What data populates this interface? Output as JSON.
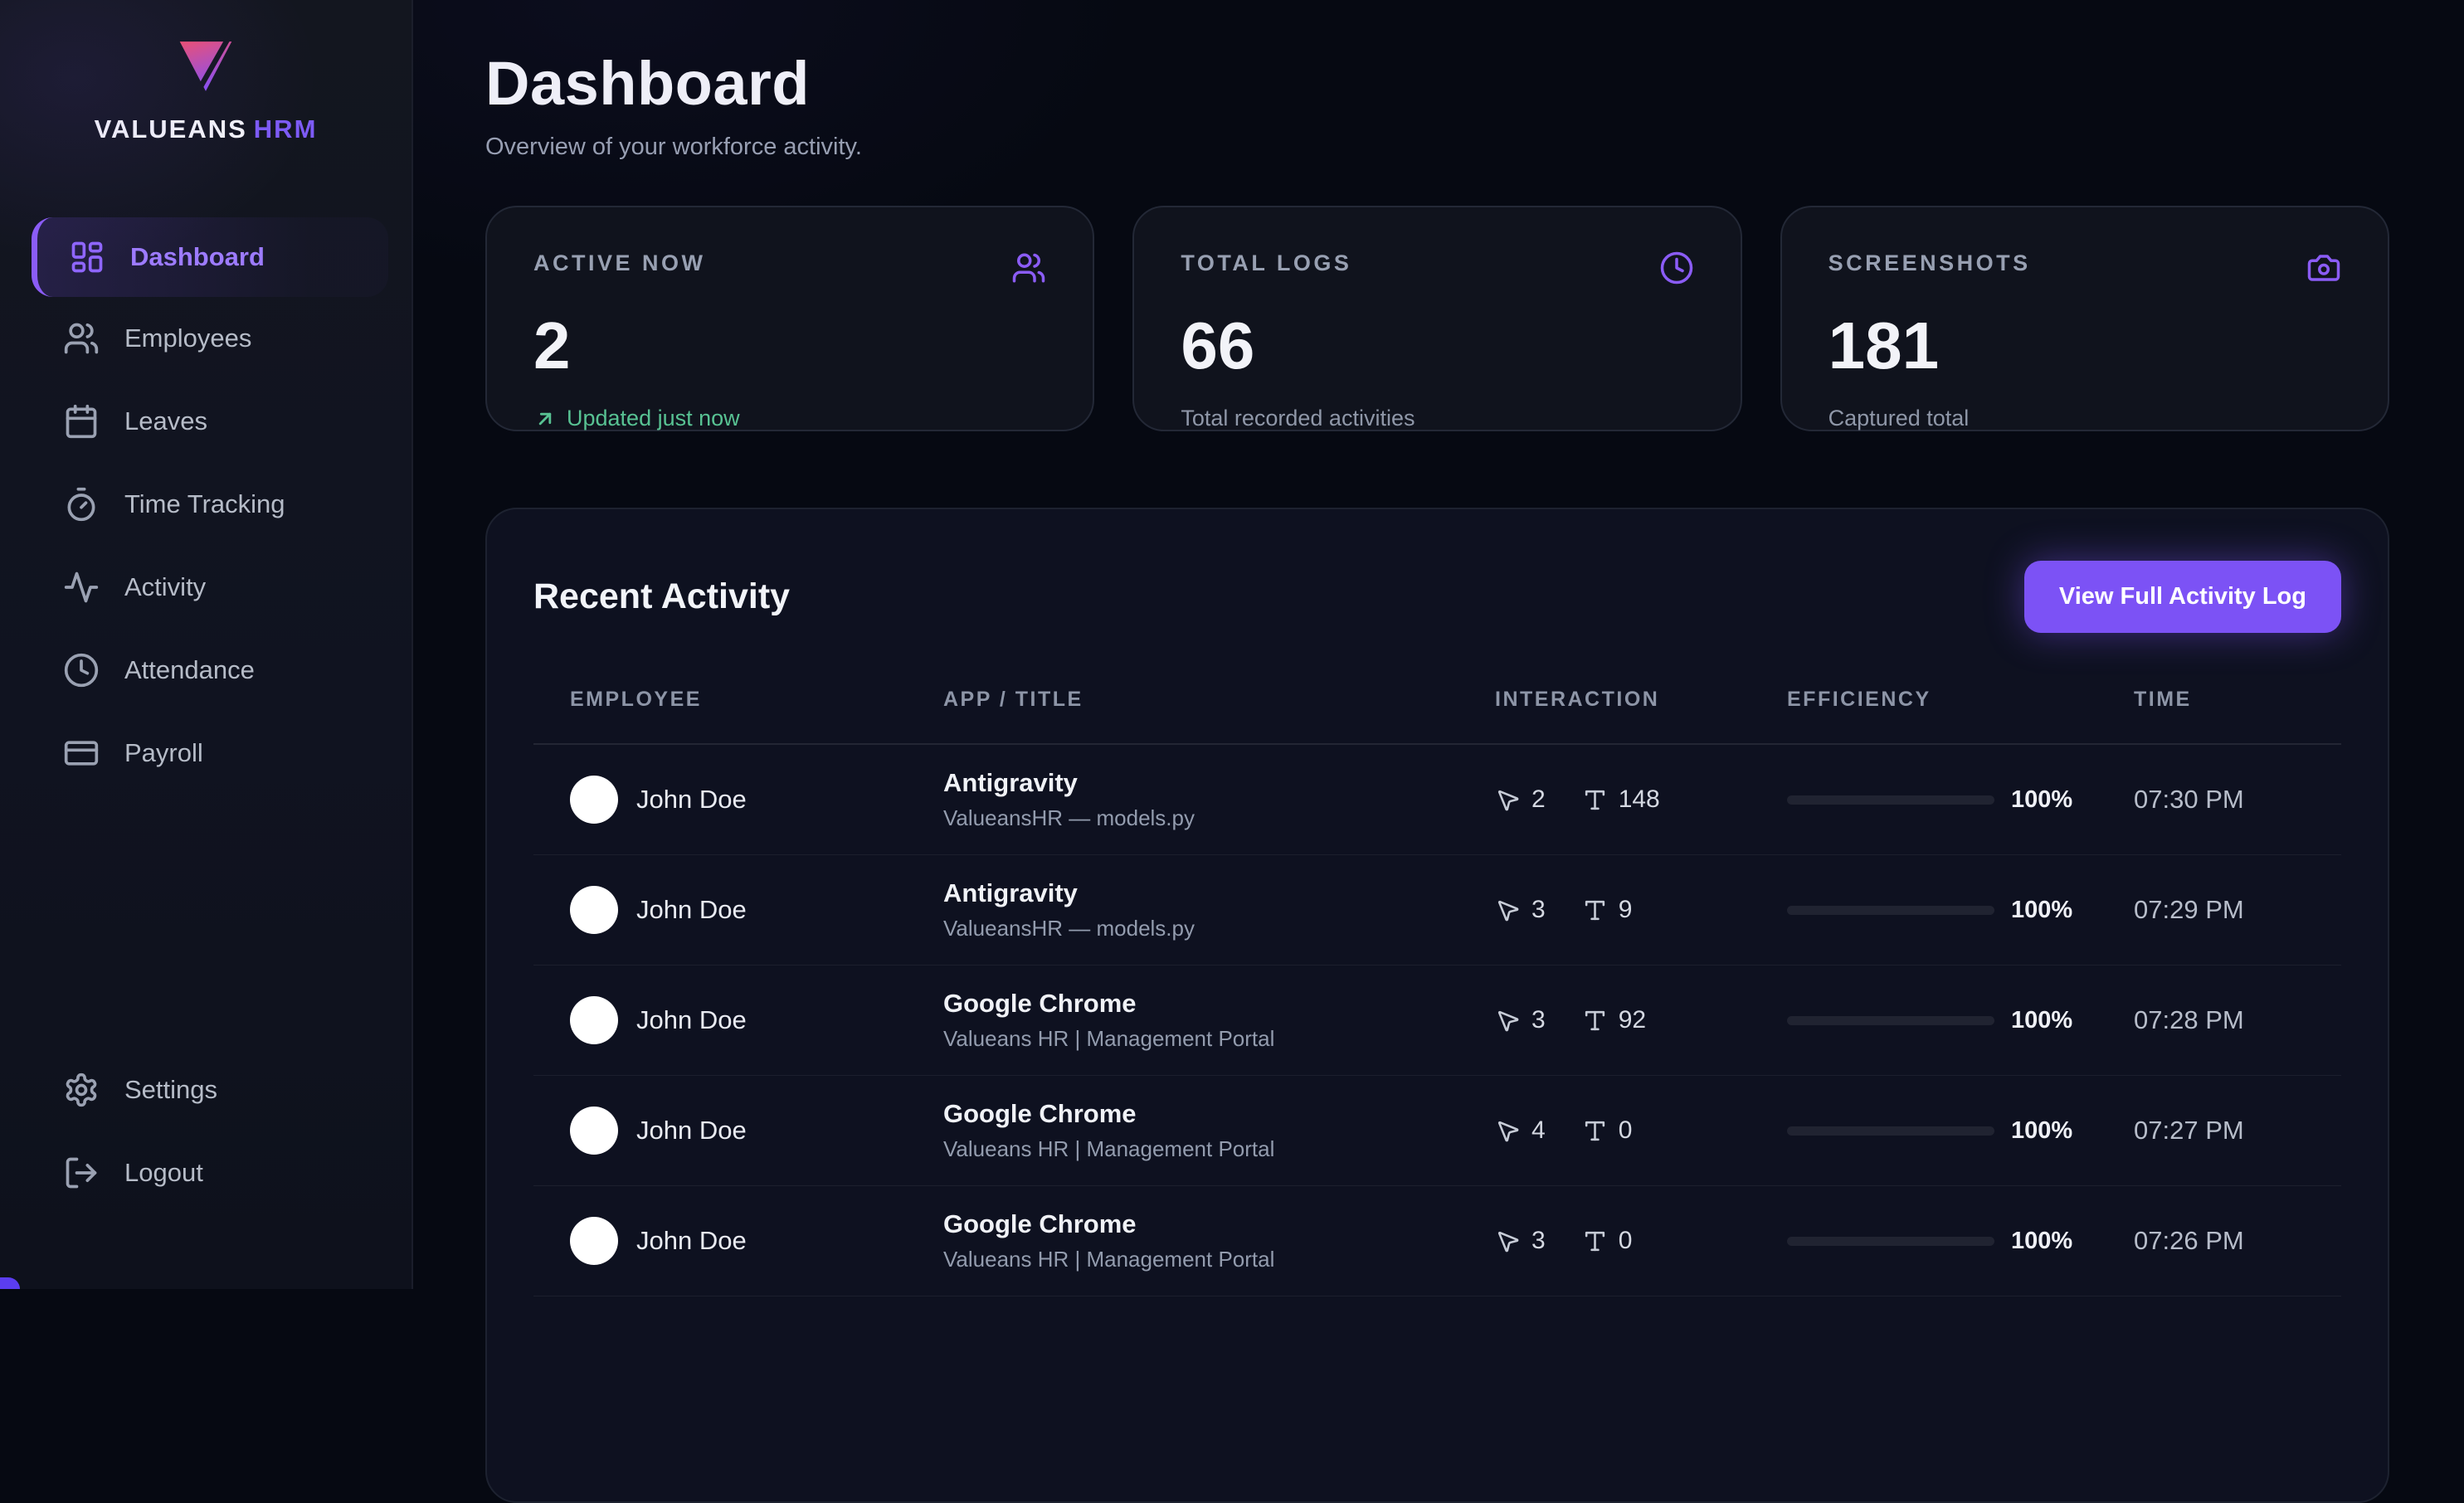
{
  "brand": {
    "name_primary": "VALUEANS",
    "name_accent": "HRM"
  },
  "sidebar": {
    "items": [
      {
        "label": "Dashboard",
        "active": true
      },
      {
        "label": "Employees"
      },
      {
        "label": "Leaves"
      },
      {
        "label": "Time Tracking"
      },
      {
        "label": "Activity"
      },
      {
        "label": "Attendance"
      },
      {
        "label": "Payroll"
      }
    ],
    "footer_items": [
      {
        "label": "Settings"
      },
      {
        "label": "Logout"
      }
    ]
  },
  "header": {
    "title": "Dashboard",
    "subtitle": "Overview of your workforce activity."
  },
  "stats": [
    {
      "label": "ACTIVE NOW",
      "value": "2",
      "caption": "Updated just now",
      "icon": "users-icon"
    },
    {
      "label": "TOTAL LOGS",
      "value": "66",
      "caption": "Total recorded activities",
      "icon": "clock-icon"
    },
    {
      "label": "SCREENSHOTS",
      "value": "181",
      "caption": "Captured total",
      "icon": "camera-icon"
    }
  ],
  "activity_panel": {
    "title": "Recent Activity",
    "button_label": "View Full Activity Log",
    "columns": [
      "EMPLOYEE",
      "APP / TITLE",
      "INTERACTION",
      "EFFICIENCY",
      "TIME"
    ],
    "rows": [
      {
        "employee": "John Doe",
        "app": "Antigravity",
        "app_subtitle": "ValueansHR — models.py",
        "clicks": "2",
        "keystrokes": "148",
        "efficiency": "100%",
        "efficiency_pct": 100,
        "time": "07:30 PM"
      },
      {
        "employee": "John Doe",
        "app": "Antigravity",
        "app_subtitle": "ValueansHR — models.py",
        "clicks": "3",
        "keystrokes": "9",
        "efficiency": "100%",
        "efficiency_pct": 100,
        "time": "07:29 PM"
      },
      {
        "employee": "John Doe",
        "app": "Google Chrome",
        "app_subtitle": "Valueans HR | Management Portal",
        "clicks": "3",
        "keystrokes": "92",
        "efficiency": "100%",
        "efficiency_pct": 100,
        "time": "07:28 PM"
      },
      {
        "employee": "John Doe",
        "app": "Google Chrome",
        "app_subtitle": "Valueans HR | Management Portal",
        "clicks": "4",
        "keystrokes": "0",
        "efficiency": "100%",
        "efficiency_pct": 100,
        "time": "07:27 PM"
      },
      {
        "employee": "John Doe",
        "app": "Google Chrome",
        "app_subtitle": "Valueans HR | Management Portal",
        "clicks": "3",
        "keystrokes": "0",
        "efficiency": "100%",
        "efficiency_pct": 100,
        "time": "07:26 PM"
      }
    ]
  },
  "colors": {
    "accent": "#7c52f5",
    "positive_green": "#57c390",
    "background": "#060912",
    "card_background": "#10131d"
  }
}
